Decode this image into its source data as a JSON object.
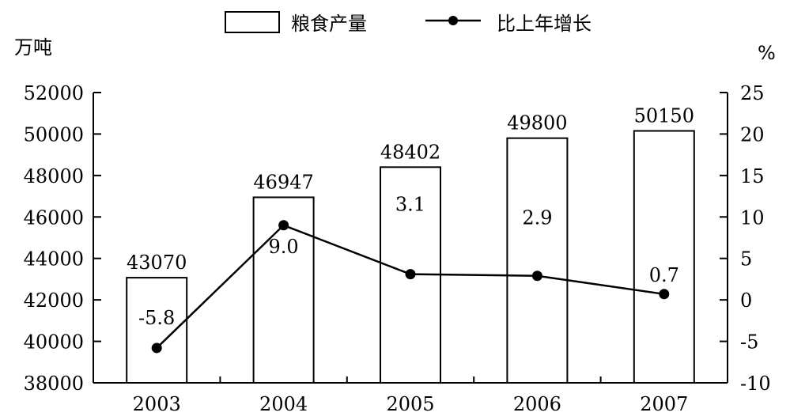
{
  "chart_data": {
    "type": "bar+line",
    "categories": [
      "2003",
      "2004",
      "2005",
      "2006",
      "2007"
    ],
    "series": [
      {
        "name": "粮食产量",
        "type": "bar",
        "axis": "left",
        "values": [
          43070,
          46947,
          48402,
          49800,
          50150
        ],
        "labels": [
          "43070",
          "46947",
          "48402",
          "49800",
          "50150"
        ]
      },
      {
        "name": "比上年增长",
        "type": "line",
        "axis": "right",
        "values": [
          -5.8,
          9.0,
          3.1,
          2.9,
          0.7
        ],
        "labels": [
          "-5.8",
          "9.0",
          "3.1",
          "2.9",
          "0.7"
        ]
      }
    ],
    "y_left": {
      "unit": "万吨",
      "range": [
        38000,
        52000
      ],
      "ticks": [
        "38000",
        "40000",
        "42000",
        "44000",
        "46000",
        "48000",
        "50000",
        "52000"
      ]
    },
    "y_right": {
      "unit": "%",
      "range": [
        -10,
        25
      ],
      "ticks": [
        "-10",
        "-5",
        "0",
        "5",
        "10",
        "15",
        "20",
        "25"
      ]
    },
    "legend": {
      "placement": "top-center"
    },
    "grid": false
  }
}
